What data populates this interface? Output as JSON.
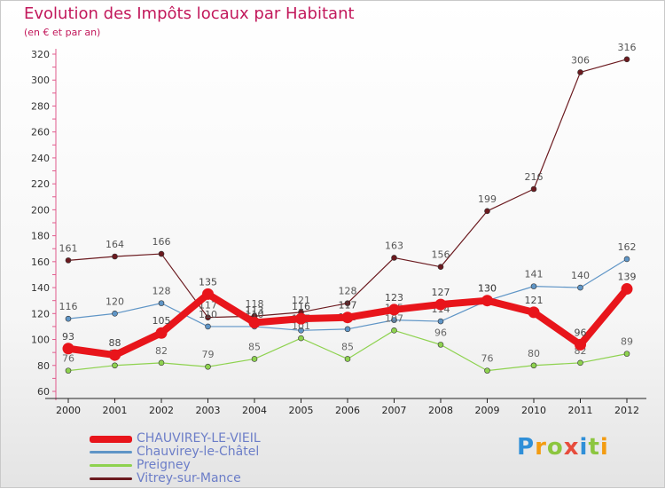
{
  "chart_data": {
    "type": "line",
    "title": "Evolution des Impôts locaux par Habitant",
    "subtitle": "(en € et par an)",
    "xlabel": "",
    "ylabel": "",
    "ylim": [
      60,
      320
    ],
    "yticks": [
      60,
      80,
      100,
      120,
      140,
      160,
      180,
      200,
      220,
      240,
      260,
      280,
      300,
      320
    ],
    "categories": [
      "2000",
      "2001",
      "2002",
      "2003",
      "2004",
      "2005",
      "2006",
      "2007",
      "2008",
      "2009",
      "2010",
      "2011",
      "2012"
    ],
    "series": [
      {
        "name": "Vitrey-sur-Mance",
        "color": "#6b1a1f",
        "values": [
          161,
          164,
          166,
          117,
          118,
          121,
          128,
          163,
          156,
          199,
          216,
          306,
          316
        ]
      },
      {
        "name": "Chauvirey-le-Châtel",
        "color": "#5f95c6",
        "values": [
          116,
          120,
          128,
          110,
          110,
          107,
          108,
          115,
          114,
          130,
          141,
          140,
          162
        ]
      },
      {
        "name": "Preigney",
        "color": "#8ed24f",
        "values": [
          76,
          80,
          82,
          79,
          85,
          101,
          85,
          107,
          96,
          76,
          80,
          82,
          89
        ]
      },
      {
        "name": "CHAUVIREY-LE-VIEIL",
        "color": "#e8151b",
        "values": [
          93,
          88,
          105,
          135,
          113,
          116,
          117,
          123,
          127,
          130,
          121,
          96,
          139
        ]
      }
    ],
    "grid": false,
    "legend": "bottom-left"
  },
  "brand": {
    "name": "Proxiti"
  }
}
